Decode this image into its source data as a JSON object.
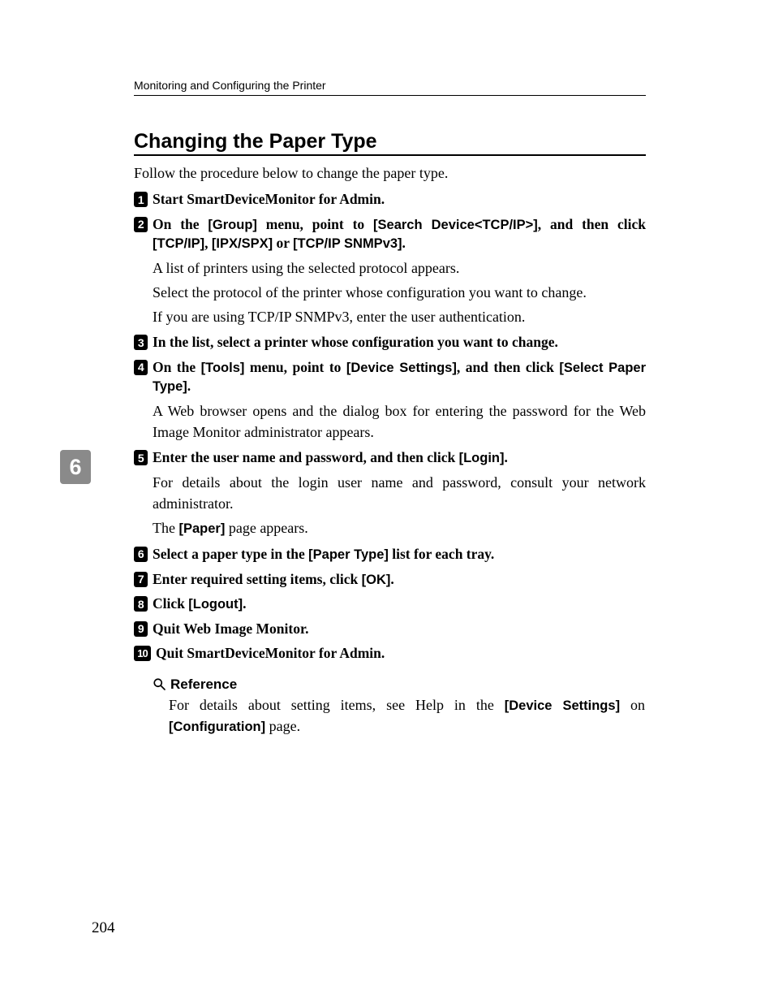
{
  "page": {
    "running_head": "Monitoring and Configuring the Printer",
    "section_title": "Changing the Paper Type",
    "intro": "Follow the procedure below to change the paper type.",
    "chapter_tab": "6",
    "page_number": "204"
  },
  "steps": [
    {
      "num": "1",
      "segments": [
        {
          "t": "Start SmartDeviceMonitor for Admin.",
          "s": false
        }
      ],
      "body": []
    },
    {
      "num": "2",
      "segments": [
        {
          "t": "On the ",
          "s": false
        },
        {
          "t": "[Group]",
          "s": true
        },
        {
          "t": " menu, point to ",
          "s": false
        },
        {
          "t": "[Search Device<TCP/IP>]",
          "s": true
        },
        {
          "t": ", and then click ",
          "s": false
        },
        {
          "t": "[TCP/IP]",
          "s": true
        },
        {
          "t": ", ",
          "s": false
        },
        {
          "t": "[IPX/SPX]",
          "s": true
        },
        {
          "t": " or ",
          "s": false
        },
        {
          "t": "[TCP/IP SNMPv3]",
          "s": true
        },
        {
          "t": ".",
          "s": false
        }
      ],
      "body": [
        [
          {
            "t": "A list of printers using the selected protocol appears.",
            "s": false
          }
        ],
        [
          {
            "t": "Select the protocol of the printer whose configuration you want to change.",
            "s": false
          }
        ],
        [
          {
            "t": "If you are using TCP/IP SNMPv3, enter the user authentication.",
            "s": false
          }
        ]
      ]
    },
    {
      "num": "3",
      "segments": [
        {
          "t": "In the list, select a printer whose configuration you want to change.",
          "s": false
        }
      ],
      "body": []
    },
    {
      "num": "4",
      "segments": [
        {
          "t": "On the ",
          "s": false
        },
        {
          "t": "[Tools]",
          "s": true
        },
        {
          "t": " menu, point to ",
          "s": false
        },
        {
          "t": "[Device Settings]",
          "s": true
        },
        {
          "t": ", and then click ",
          "s": false
        },
        {
          "t": "[Select Paper Type]",
          "s": true
        },
        {
          "t": ".",
          "s": false
        }
      ],
      "body": [
        [
          {
            "t": "A Web browser opens and the dialog box for entering the password for the Web Image Monitor administrator appears.",
            "s": false
          }
        ]
      ]
    },
    {
      "num": "5",
      "segments": [
        {
          "t": "Enter the user name and password, and then click ",
          "s": false
        },
        {
          "t": "[Login]",
          "s": true
        },
        {
          "t": ".",
          "s": false
        }
      ],
      "body": [
        [
          {
            "t": "For details about the login user name and password, consult your network administrator.",
            "s": false
          }
        ],
        [
          {
            "t": "The ",
            "s": false
          },
          {
            "t": "[Paper]",
            "s": true
          },
          {
            "t": " page appears.",
            "s": false
          }
        ]
      ]
    },
    {
      "num": "6",
      "segments": [
        {
          "t": "Select a paper type in the ",
          "s": false
        },
        {
          "t": "[Paper Type]",
          "s": true
        },
        {
          "t": " list for each tray.",
          "s": false
        }
      ],
      "body": []
    },
    {
      "num": "7",
      "segments": [
        {
          "t": "Enter required setting items, click ",
          "s": false
        },
        {
          "t": "[OK]",
          "s": true
        },
        {
          "t": ".",
          "s": false
        }
      ],
      "body": []
    },
    {
      "num": "8",
      "segments": [
        {
          "t": "Click ",
          "s": false
        },
        {
          "t": "[Logout]",
          "s": true
        },
        {
          "t": ".",
          "s": false
        }
      ],
      "body": []
    },
    {
      "num": "9",
      "segments": [
        {
          "t": "Quit Web Image Monitor.",
          "s": false
        }
      ],
      "body": []
    },
    {
      "num": "10",
      "segments": [
        {
          "t": "Quit SmartDeviceMonitor for Admin.",
          "s": false
        }
      ],
      "body": []
    }
  ],
  "reference": {
    "title": "Reference",
    "body_segments": [
      {
        "t": "For details about setting items, see Help in the ",
        "s": false
      },
      {
        "t": "[Device Settings]",
        "s": true
      },
      {
        "t": " on ",
        "s": false
      },
      {
        "t": "[Configuration]",
        "s": true
      },
      {
        "t": " page.",
        "s": false
      }
    ]
  },
  "colors": {
    "text": "#000000",
    "background": "#ffffff",
    "tab_bg": "#8a8a8a",
    "tab_fg": "#ffffff",
    "num_bg": "#000000",
    "num_fg": "#ffffff"
  },
  "fonts": {
    "serif": "Palatino Linotype, Book Antiqua, Palatino, Georgia, serif",
    "sans": "Arial, Helvetica, sans-serif",
    "title_size_pt": 19,
    "body_size_pt": 13.5,
    "step_head_size_pt": 13,
    "running_head_size_pt": 10.5
  }
}
